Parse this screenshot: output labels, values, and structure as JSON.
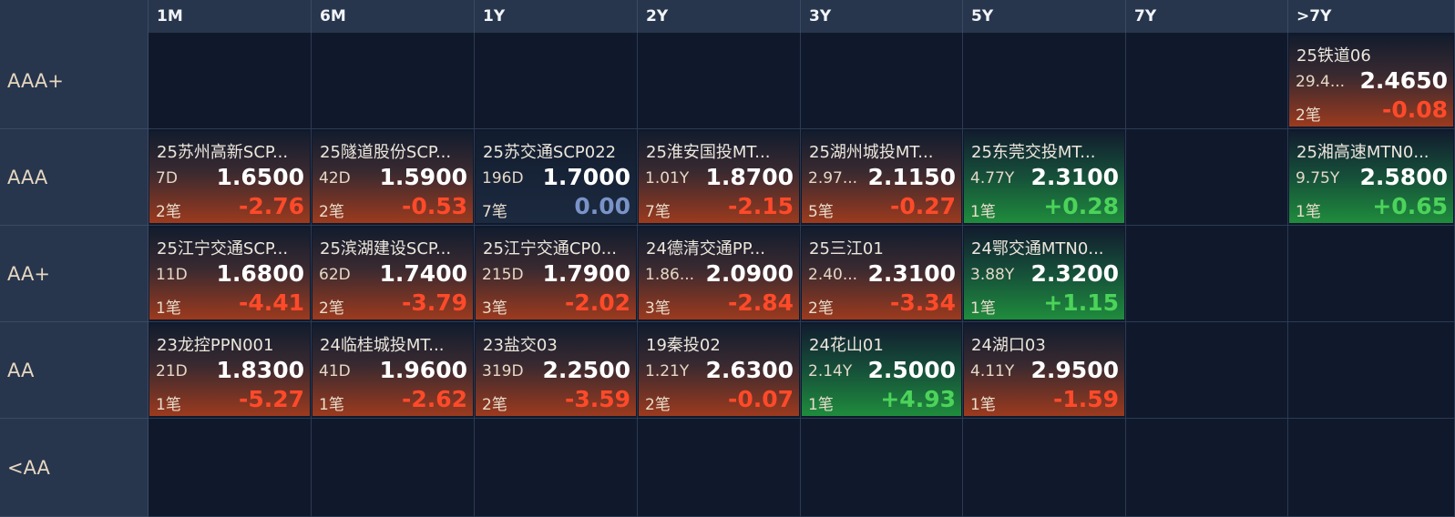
{
  "columns": [
    "1M",
    "6M",
    "1Y",
    "2Y",
    "3Y",
    "5Y",
    "7Y",
    ">7Y"
  ],
  "rows": [
    "AAA+",
    "AAA",
    "AA+",
    "AA",
    "<AA"
  ],
  "colors": {
    "down": "#ff4a2a",
    "up": "#4cd35a",
    "flat": "#7a93c8",
    "header_bg": "#27364d",
    "cell_bg": "#10192c"
  },
  "cells": {
    "r0c7": {
      "name": "25铁道06",
      "term": "29.4...",
      "yield": "2.4650",
      "count": "2笔",
      "change": "-0.08",
      "dir": "down"
    },
    "r1c0": {
      "name": "25苏州高新SCP...",
      "term": "7D",
      "yield": "1.6500",
      "count": "2笔",
      "change": "-2.76",
      "dir": "down"
    },
    "r1c1": {
      "name": "25隧道股份SCP...",
      "term": "42D",
      "yield": "1.5900",
      "count": "2笔",
      "change": "-0.53",
      "dir": "down"
    },
    "r1c2": {
      "name": "25苏交通SCP022",
      "term": "196D",
      "yield": "1.7000",
      "count": "7笔",
      "change": "0.00",
      "dir": "flat"
    },
    "r1c3": {
      "name": "25淮安国投MT...",
      "term": "1.01Y",
      "yield": "1.8700",
      "count": "7笔",
      "change": "-2.15",
      "dir": "down"
    },
    "r1c4": {
      "name": "25湖州城投MT...",
      "term": "2.97...",
      "yield": "2.1150",
      "count": "5笔",
      "change": "-0.27",
      "dir": "down"
    },
    "r1c5": {
      "name": "25东莞交投MT...",
      "term": "4.77Y",
      "yield": "2.3100",
      "count": "1笔",
      "change": "+0.28",
      "dir": "up"
    },
    "r1c7": {
      "name": "25湘高速MTN0...",
      "term": "9.75Y",
      "yield": "2.5800",
      "count": "1笔",
      "change": "+0.65",
      "dir": "up"
    },
    "r2c0": {
      "name": "25江宁交通SCP...",
      "term": "11D",
      "yield": "1.6800",
      "count": "1笔",
      "change": "-4.41",
      "dir": "down"
    },
    "r2c1": {
      "name": "25滨湖建设SCP...",
      "term": "62D",
      "yield": "1.7400",
      "count": "2笔",
      "change": "-3.79",
      "dir": "down"
    },
    "r2c2": {
      "name": "25江宁交通CP0...",
      "term": "215D",
      "yield": "1.7900",
      "count": "3笔",
      "change": "-2.02",
      "dir": "down"
    },
    "r2c3": {
      "name": "24德清交通PP...",
      "term": "1.86...",
      "yield": "2.0900",
      "count": "3笔",
      "change": "-2.84",
      "dir": "down"
    },
    "r2c4": {
      "name": "25三江01",
      "term": "2.40...",
      "yield": "2.3100",
      "count": "2笔",
      "change": "-3.34",
      "dir": "down"
    },
    "r2c5": {
      "name": "24鄂交通MTN0...",
      "term": "3.88Y",
      "yield": "2.3200",
      "count": "1笔",
      "change": "+1.15",
      "dir": "up"
    },
    "r3c0": {
      "name": "23龙控PPN001",
      "term": "21D",
      "yield": "1.8300",
      "count": "1笔",
      "change": "-5.27",
      "dir": "down"
    },
    "r3c1": {
      "name": "24临桂城投MT...",
      "term": "41D",
      "yield": "1.9600",
      "count": "1笔",
      "change": "-2.62",
      "dir": "down"
    },
    "r3c2": {
      "name": "23盐交03",
      "term": "319D",
      "yield": "2.2500",
      "count": "2笔",
      "change": "-3.59",
      "dir": "down"
    },
    "r3c3": {
      "name": "19秦投02",
      "term": "1.21Y",
      "yield": "2.6300",
      "count": "2笔",
      "change": "-0.07",
      "dir": "down"
    },
    "r3c4": {
      "name": "24花山01",
      "term": "2.14Y",
      "yield": "2.5000",
      "count": "1笔",
      "change": "+4.93",
      "dir": "up"
    },
    "r3c5": {
      "name": "24湖口03",
      "term": "4.11Y",
      "yield": "2.9500",
      "count": "1笔",
      "change": "-1.59",
      "dir": "down"
    }
  }
}
